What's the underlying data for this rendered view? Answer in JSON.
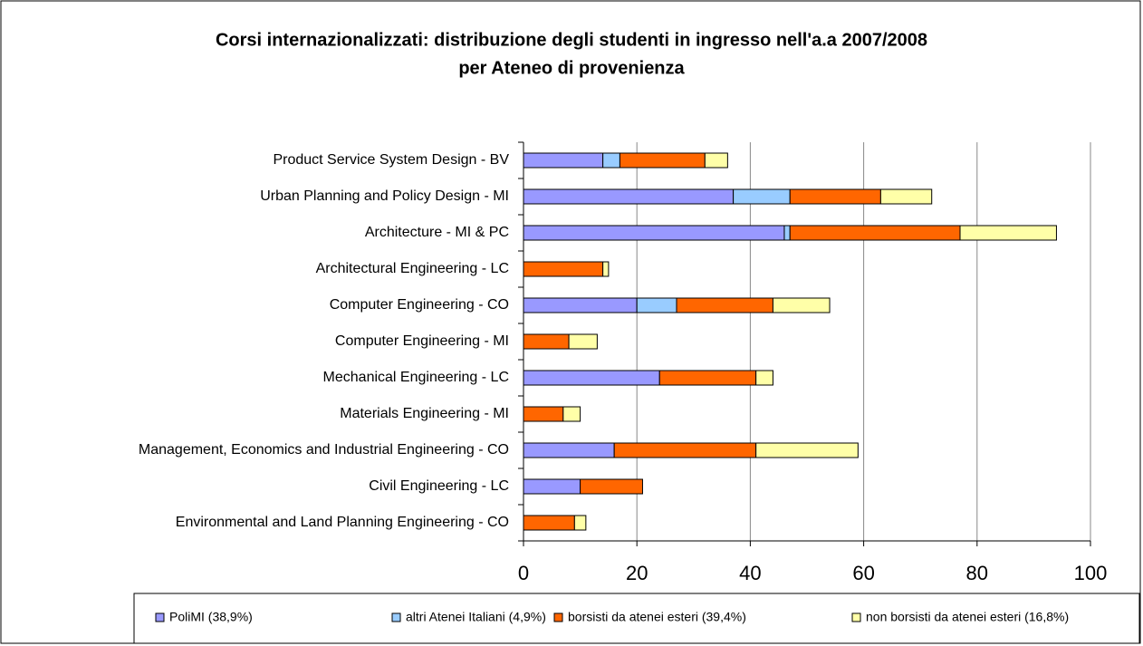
{
  "chart_data": {
    "type": "stacked_barh",
    "title": [
      "Corsi internazionalizzati: distribuzione degli studenti in ingresso nell'a.a 2007/2008",
      "per Ateneo di provenienza"
    ],
    "categories": [
      "Product Service System Design - BV",
      "Urban Planning and Policy Design - MI",
      "Architecture  - MI & PC",
      "Architectural Engineering - LC",
      "Computer Engineering - CO",
      "Computer Engineering - MI",
      "Mechanical Engineering - LC",
      "Materials Engineering - MI",
      "Management, Economics and Industrial Engineering - CO",
      "Civil Engineering - LC",
      "Environmental and Land Planning Engineering - CO"
    ],
    "series": [
      {
        "name": "PoliMI (38,9%)",
        "color": "#9999ff",
        "values": [
          14,
          37,
          46,
          0,
          20,
          0,
          24,
          0,
          16,
          10,
          0
        ]
      },
      {
        "name": "altri Atenei Italiani (4,9%)",
        "color": "#99ccff",
        "values": [
          3,
          10,
          1,
          0,
          7,
          0,
          0,
          0,
          0,
          0,
          0
        ]
      },
      {
        "name": "borsisti da atenei esteri (39,4%)",
        "color": "#ff6600",
        "values": [
          15,
          16,
          30,
          14,
          17,
          8,
          17,
          7,
          25,
          11,
          9
        ]
      },
      {
        "name": "non borsisti da atenei esteri (16,8%)",
        "color": "#ffffa8",
        "values": [
          4,
          9,
          17,
          1,
          10,
          5,
          3,
          3,
          18,
          0,
          2
        ]
      }
    ],
    "xlim": [
      0,
      100
    ],
    "xticks": [
      0,
      20,
      40,
      60,
      80,
      100
    ],
    "grid": true,
    "legend": "bottom"
  }
}
